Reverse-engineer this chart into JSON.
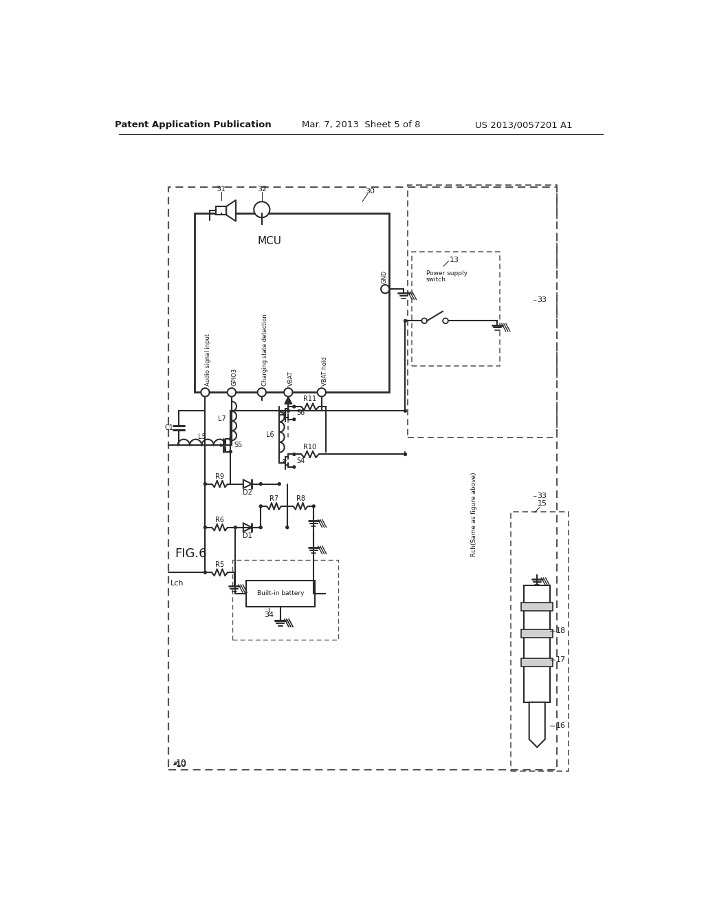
{
  "title_left": "Patent Application Publication",
  "title_center": "Mar. 7, 2013  Sheet 5 of 8",
  "title_right": "US 2013/0057201 A1",
  "fig_label": "FIG.6",
  "background": "#ffffff",
  "line_color": "#2a2a2a",
  "text_color": "#1a1a1a"
}
